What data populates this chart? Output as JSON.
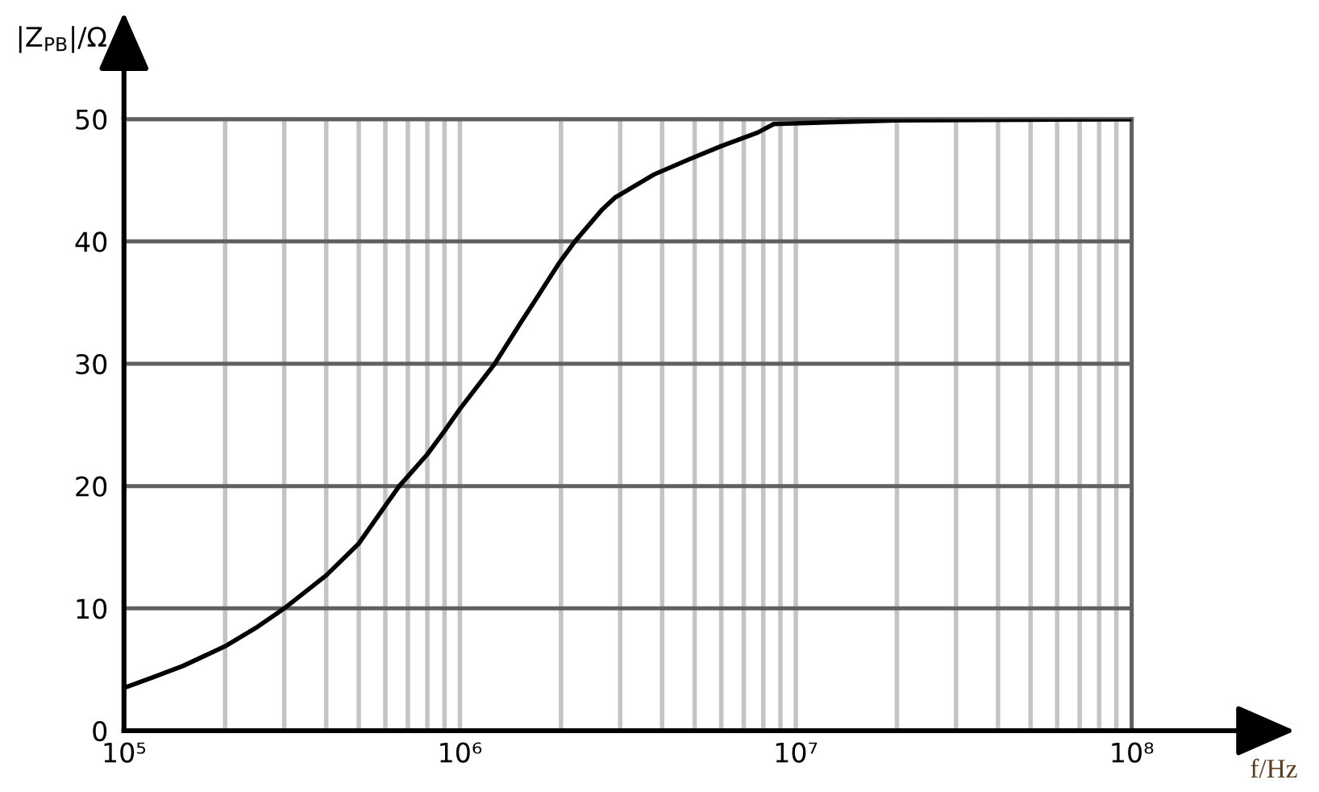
{
  "chart_data": {
    "type": "line",
    "xlabel": "f/Hz",
    "ylabel": "|Z$_{PB}$|/Ω",
    "x": [
      100000,
      120000,
      150000,
      200000,
      250000,
      300000,
      400000,
      500000,
      600000,
      660000,
      800000,
      900000,
      1000000,
      1270000,
      1520000,
      1650000,
      1970000,
      2200000,
      2650000,
      2900000,
      3800000,
      4800000,
      6000000,
      7700000,
      8600000,
      20000000,
      100000000
    ],
    "series": [
      {
        "color": "#000000",
        "values": [
          3.5,
          4.3,
          5.3,
          6.9,
          8.5,
          10.0,
          12.7,
          15.3,
          18.4,
          20.0,
          22.6,
          24.5,
          26.3,
          30.0,
          33.4,
          34.9,
          38.2,
          40.0,
          42.6,
          43.6,
          45.5,
          46.7,
          47.8,
          48.9,
          49.6,
          49.9,
          50.0
        ]
      }
    ],
    "xlim": [
      100000,
      100000000
    ],
    "ylim": [
      0,
      50
    ],
    "xticks": [
      {
        "value": 100000,
        "label": "10⁵"
      },
      {
        "value": 200000,
        "label": null
      },
      {
        "value": 300000,
        "label": null
      },
      {
        "value": 400000,
        "label": null
      },
      {
        "value": 500000,
        "label": null
      },
      {
        "value": 600000,
        "label": null
      },
      {
        "value": 700000,
        "label": null
      },
      {
        "value": 800000,
        "label": null
      },
      {
        "value": 900000,
        "label": null
      },
      {
        "value": 1000000,
        "label": "10⁶"
      },
      {
        "value": 2000000,
        "label": null
      },
      {
        "value": 3000000,
        "label": null
      },
      {
        "value": 4000000,
        "label": null
      },
      {
        "value": 5000000,
        "label": null
      },
      {
        "value": 6000000,
        "label": null
      },
      {
        "value": 7000000,
        "label": null
      },
      {
        "value": 8000000,
        "label": null
      },
      {
        "value": 9000000,
        "label": null
      },
      {
        "value": 10000000,
        "label": "10⁷"
      },
      {
        "value": 20000000,
        "label": null
      },
      {
        "value": 30000000,
        "label": null
      },
      {
        "value": 40000000,
        "label": null
      },
      {
        "value": 50000000,
        "label": null
      },
      {
        "value": 60000000,
        "label": null
      },
      {
        "value": 70000000,
        "label": null
      },
      {
        "value": 80000000,
        "label": null
      },
      {
        "value": 90000000,
        "label": null
      },
      {
        "value": 100000000,
        "label": "10⁸"
      }
    ],
    "yticks": [
      0,
      10,
      20,
      30,
      40,
      50
    ],
    "log": "x",
    "grid": true
  }
}
